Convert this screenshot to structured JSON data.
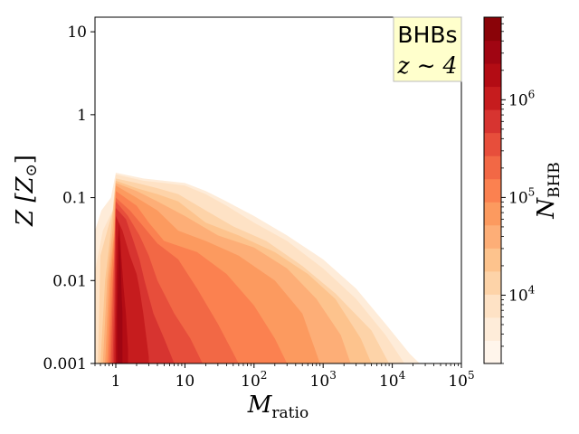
{
  "chart_data": {
    "type": "contour",
    "xlabel": "M",
    "xlabel_sub": "ratio",
    "ylabel": "Z [Z",
    "ylabel_sym": "⊙",
    "ylabel_close": "]",
    "x_scale": "log",
    "y_scale": "log",
    "xlim": [
      0.5,
      100000
    ],
    "ylim": [
      0.001,
      15
    ],
    "x_ticks": [
      {
        "value": 1,
        "label": "1"
      },
      {
        "value": 10,
        "label": "10"
      },
      {
        "value": 100,
        "label": "10",
        "exp": "2"
      },
      {
        "value": 1000,
        "label": "10",
        "exp": "3"
      },
      {
        "value": 10000,
        "label": "10",
        "exp": "4"
      },
      {
        "value": 100000,
        "label": "10",
        "exp": "5"
      }
    ],
    "y_ticks": [
      {
        "value": 0.001,
        "label": "0.001"
      },
      {
        "value": 0.01,
        "label": "0.01"
      },
      {
        "value": 0.1,
        "label": "0.1"
      },
      {
        "value": 1,
        "label": "1"
      },
      {
        "value": 10,
        "label": "10"
      }
    ],
    "legend": {
      "line1": "BHBs",
      "line2": "z ∼ 4",
      "placement": "top-right",
      "background": "#ffffcc"
    },
    "colorbar": {
      "label": "N",
      "label_sub": "BHB",
      "scale": "log",
      "range": [
        2000,
        7000000
      ],
      "ticks": [
        {
          "value": 10000,
          "label": "10",
          "exp": "4"
        },
        {
          "value": 100000,
          "label": "10",
          "exp": "5"
        },
        {
          "value": 1000000,
          "label": "10",
          "exp": "6"
        }
      ],
      "colors": [
        "#fff5eb",
        "#feecd9",
        "#fee2c5",
        "#fdd3a8",
        "#fdc38d",
        "#fdae77",
        "#fc9a5f",
        "#fb8150",
        "#f26845",
        "#e74e3b",
        "#d73430",
        "#c61c1e",
        "#b30c14",
        "#a00512",
        "#8a0308"
      ]
    },
    "levels": [
      {
        "level": 1,
        "xrange": [
          0.5,
          25000
        ],
        "upper": [
          [
            0.5,
            0.001
          ],
          [
            0.5,
            0.04
          ],
          [
            0.62,
            0.07
          ],
          [
            0.85,
            0.1
          ],
          [
            1.0,
            0.2
          ],
          [
            2.5,
            0.17
          ],
          [
            5,
            0.16
          ],
          [
            10,
            0.15
          ],
          [
            20,
            0.12
          ],
          [
            40,
            0.09
          ],
          [
            100,
            0.06
          ],
          [
            300,
            0.035
          ],
          [
            1000,
            0.018
          ],
          [
            3000,
            0.008
          ],
          [
            8000,
            0.003
          ],
          [
            18000,
            0.0013
          ],
          [
            25000,
            0.001
          ]
        ]
      },
      {
        "level": 2,
        "xrange": [
          0.5,
          15000
        ],
        "upper": [
          [
            0.5,
            0.001
          ],
          [
            0.5,
            0.013
          ],
          [
            0.65,
            0.04
          ],
          [
            0.9,
            0.07
          ],
          [
            1.0,
            0.19
          ],
          [
            2.5,
            0.16
          ],
          [
            5,
            0.15
          ],
          [
            10,
            0.14
          ],
          [
            20,
            0.11
          ],
          [
            40,
            0.08
          ],
          [
            100,
            0.05
          ],
          [
            300,
            0.03
          ],
          [
            1000,
            0.014
          ],
          [
            3000,
            0.006
          ],
          [
            8000,
            0.0022
          ],
          [
            15000,
            0.001
          ]
        ]
      },
      {
        "level": 3,
        "xrange": [
          0.55,
          9000
        ],
        "upper": [
          [
            0.55,
            0.001
          ],
          [
            0.6,
            0.02
          ],
          [
            0.75,
            0.04
          ],
          [
            0.95,
            0.08
          ],
          [
            1.0,
            0.17
          ],
          [
            2,
            0.15
          ],
          [
            4,
            0.13
          ],
          [
            8,
            0.11
          ],
          [
            20,
            0.07
          ],
          [
            50,
            0.045
          ],
          [
            150,
            0.03
          ],
          [
            500,
            0.015
          ],
          [
            1500,
            0.007
          ],
          [
            5000,
            0.0025
          ],
          [
            9000,
            0.001
          ]
        ]
      },
      {
        "level": 4,
        "xrange": [
          0.6,
          5000
        ],
        "upper": [
          [
            0.6,
            0.001
          ],
          [
            0.7,
            0.01
          ],
          [
            0.85,
            0.04
          ],
          [
            1.0,
            0.16
          ],
          [
            2,
            0.13
          ],
          [
            4,
            0.11
          ],
          [
            8,
            0.09
          ],
          [
            20,
            0.05
          ],
          [
            60,
            0.035
          ],
          [
            200,
            0.022
          ],
          [
            600,
            0.012
          ],
          [
            1500,
            0.006
          ],
          [
            3500,
            0.002
          ],
          [
            5000,
            0.001
          ]
        ]
      },
      {
        "level": 5,
        "xrange": [
          0.65,
          2500
        ],
        "upper": [
          [
            0.65,
            0.001
          ],
          [
            0.75,
            0.01
          ],
          [
            0.9,
            0.04
          ],
          [
            1.0,
            0.15
          ],
          [
            2,
            0.12
          ],
          [
            4,
            0.09
          ],
          [
            10,
            0.06
          ],
          [
            30,
            0.035
          ],
          [
            100,
            0.025
          ],
          [
            300,
            0.014
          ],
          [
            800,
            0.006
          ],
          [
            1800,
            0.0022
          ],
          [
            2500,
            0.001
          ]
        ]
      },
      {
        "level": 6,
        "xrange": [
          0.7,
          900
        ],
        "upper": [
          [
            0.7,
            0.001
          ],
          [
            0.8,
            0.01
          ],
          [
            0.95,
            0.04
          ],
          [
            1.0,
            0.14
          ],
          [
            2,
            0.1
          ],
          [
            4,
            0.07
          ],
          [
            8,
            0.04
          ],
          [
            20,
            0.03
          ],
          [
            60,
            0.02
          ],
          [
            200,
            0.01
          ],
          [
            500,
            0.004
          ],
          [
            900,
            0.001
          ]
        ]
      },
      {
        "level": 7,
        "xrange": [
          0.75,
          300
        ],
        "upper": [
          [
            0.75,
            0.001
          ],
          [
            0.85,
            0.01
          ],
          [
            0.95,
            0.035
          ],
          [
            1.0,
            0.12
          ],
          [
            2,
            0.08
          ],
          [
            3,
            0.05
          ],
          [
            5,
            0.03
          ],
          [
            15,
            0.022
          ],
          [
            40,
            0.012
          ],
          [
            100,
            0.005
          ],
          [
            200,
            0.002
          ],
          [
            300,
            0.001
          ]
        ]
      },
      {
        "level": 8,
        "xrange": [
          0.8,
          60
        ],
        "upper": [
          [
            0.8,
            0.001
          ],
          [
            0.9,
            0.01
          ],
          [
            0.97,
            0.03
          ],
          [
            1.0,
            0.1
          ],
          [
            1.6,
            0.07
          ],
          [
            2.5,
            0.045
          ],
          [
            4,
            0.028
          ],
          [
            8,
            0.018
          ],
          [
            15,
            0.008
          ],
          [
            30,
            0.003
          ],
          [
            60,
            0.001
          ]
        ]
      },
      {
        "level": 9,
        "xrange": [
          0.85,
          18
        ],
        "upper": [
          [
            0.85,
            0.001
          ],
          [
            0.92,
            0.008
          ],
          [
            1.0,
            0.09
          ],
          [
            1.5,
            0.06
          ],
          [
            2.2,
            0.035
          ],
          [
            3,
            0.02
          ],
          [
            4,
            0.01
          ],
          [
            7,
            0.004
          ],
          [
            12,
            0.002
          ],
          [
            18,
            0.001
          ]
        ]
      },
      {
        "level": 10,
        "xrange": [
          0.9,
          7
        ],
        "upper": [
          [
            0.9,
            0.001
          ],
          [
            0.95,
            0.006
          ],
          [
            1.0,
            0.075
          ],
          [
            1.4,
            0.055
          ],
          [
            1.8,
            0.03
          ],
          [
            2.2,
            0.018
          ],
          [
            2.6,
            0.01
          ],
          [
            3.5,
            0.004
          ],
          [
            5,
            0.002
          ],
          [
            7,
            0.001
          ]
        ]
      },
      {
        "level": 11,
        "xrange": [
          0.95,
          3
        ],
        "upper": [
          [
            0.95,
            0.0012
          ],
          [
            0.98,
            0.005
          ],
          [
            1.0,
            0.06
          ],
          [
            1.25,
            0.04
          ],
          [
            1.6,
            0.02
          ],
          [
            2,
            0.012
          ],
          [
            2.2,
            0.008
          ],
          [
            2.5,
            0.004
          ],
          [
            3,
            0.0012
          ]
        ]
      },
      {
        "level": 12,
        "xrange": [
          1.0,
          1.5
        ],
        "upper": [
          [
            1.0,
            0.0015
          ],
          [
            1.02,
            0.01
          ],
          [
            1.06,
            0.03
          ],
          [
            1.12,
            0.05
          ],
          [
            1.2,
            0.02
          ],
          [
            1.3,
            0.008
          ],
          [
            1.4,
            0.004
          ],
          [
            1.5,
            0.0015
          ]
        ]
      },
      {
        "level": 13,
        "xrange": [
          1.05,
          1.25
        ],
        "upper": [
          [
            1.05,
            0.004
          ],
          [
            1.08,
            0.012
          ],
          [
            1.12,
            0.035
          ],
          [
            1.18,
            0.015
          ],
          [
            1.22,
            0.006
          ],
          [
            1.25,
            0.004
          ]
        ]
      }
    ]
  }
}
